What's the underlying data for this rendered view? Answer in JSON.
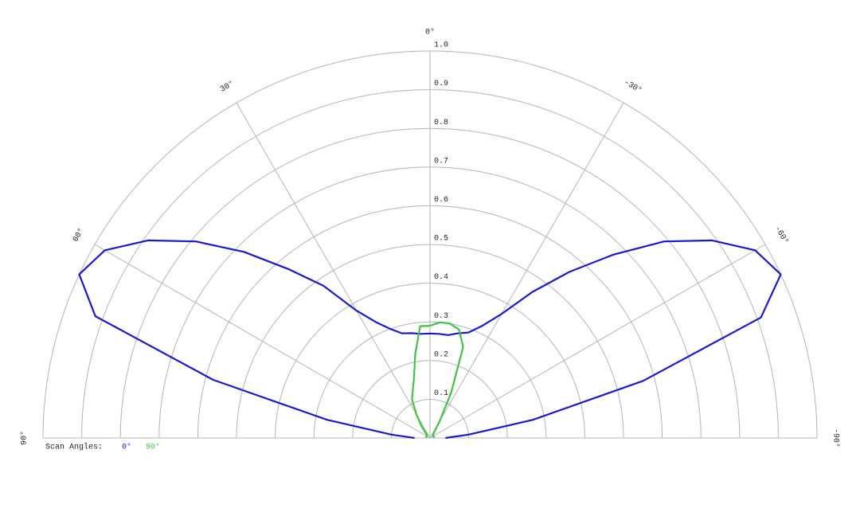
{
  "chart_data": {
    "type": "polar-half",
    "angles": [
      -90,
      -85,
      -80,
      -75,
      -70,
      -65,
      -60,
      -55,
      -50,
      -45,
      -40,
      -35,
      -30,
      -25,
      -20,
      -15,
      -10,
      -5,
      0,
      5,
      10,
      15,
      20,
      25,
      30,
      35,
      40,
      45,
      50,
      55,
      60,
      65,
      70,
      75,
      80,
      85,
      90
    ],
    "series": [
      {
        "name": "0°",
        "color": "#1a1acc",
        "values": [
          0.04,
          0.1,
          0.27,
          0.57,
          0.91,
          1.0,
          0.97,
          0.89,
          0.79,
          0.67,
          0.56,
          0.46,
          0.37,
          0.32,
          0.29,
          0.28,
          0.27,
          0.27,
          0.27,
          0.27,
          0.275,
          0.28,
          0.3,
          0.33,
          0.38,
          0.48,
          0.57,
          0.68,
          0.79,
          0.89,
          0.97,
          1.0,
          0.92,
          0.58,
          0.27,
          0.1,
          0.04
        ]
      },
      {
        "name": "90°",
        "color": "#44c044",
        "values": [
          0.01,
          0.01,
          0.01,
          0.01,
          0.01,
          0.01,
          0.01,
          0.01,
          0.01,
          0.01,
          0.015,
          0.02,
          0.05,
          0.13,
          0.25,
          0.29,
          0.3,
          0.3,
          0.29,
          0.29,
          0.22,
          0.16,
          0.13,
          0.11,
          0.07,
          0.04,
          0.02,
          0.01,
          0.01,
          0.01,
          0.01,
          0.01,
          0.01,
          0.01,
          0.01,
          0.01,
          0.01
        ]
      }
    ],
    "rlim": [
      0,
      1
    ],
    "rticks": [
      0.1,
      0.2,
      0.3,
      0.4,
      0.5,
      0.6,
      0.7,
      0.8,
      0.9,
      {
        "value": 1,
        "label": "1.0"
      }
    ],
    "angle_ticks": [
      {
        "value": 90,
        "label": "90°"
      },
      {
        "value": 60,
        "label": "60°"
      },
      {
        "value": 30,
        "label": "30°"
      },
      {
        "value": 0,
        "label": "0°"
      },
      {
        "value": -30,
        "label": "-30°"
      },
      {
        "value": -60,
        "label": "-60°"
      },
      {
        "value": -90,
        "label": "-90°"
      }
    ],
    "legend_title": "Scan Angles:",
    "grid": true
  }
}
